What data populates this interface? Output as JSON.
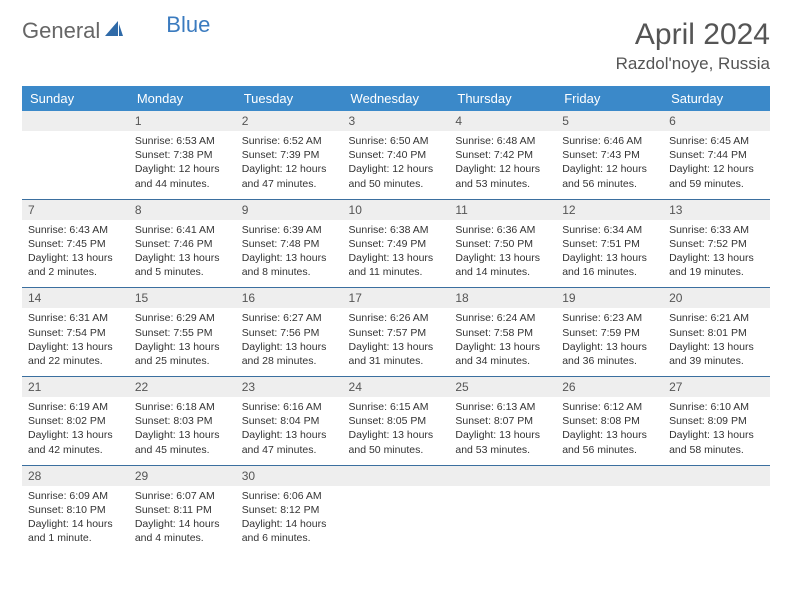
{
  "logo": {
    "text1": "General",
    "text2": "Blue"
  },
  "title": "April 2024",
  "location": "Razdol'noye, Russia",
  "colors": {
    "header_bg": "#3b89c9",
    "header_text": "#ffffff",
    "daynum_bg": "#eeeeee",
    "rule": "#3b6f9f",
    "logo_gray": "#666666",
    "logo_blue": "#3b7bbf"
  },
  "weekdays": [
    "Sunday",
    "Monday",
    "Tuesday",
    "Wednesday",
    "Thursday",
    "Friday",
    "Saturday"
  ],
  "weeks": [
    [
      null,
      {
        "n": "1",
        "sr": "Sunrise: 6:53 AM",
        "ss": "Sunset: 7:38 PM",
        "dl": "Daylight: 12 hours and 44 minutes."
      },
      {
        "n": "2",
        "sr": "Sunrise: 6:52 AM",
        "ss": "Sunset: 7:39 PM",
        "dl": "Daylight: 12 hours and 47 minutes."
      },
      {
        "n": "3",
        "sr": "Sunrise: 6:50 AM",
        "ss": "Sunset: 7:40 PM",
        "dl": "Daylight: 12 hours and 50 minutes."
      },
      {
        "n": "4",
        "sr": "Sunrise: 6:48 AM",
        "ss": "Sunset: 7:42 PM",
        "dl": "Daylight: 12 hours and 53 minutes."
      },
      {
        "n": "5",
        "sr": "Sunrise: 6:46 AM",
        "ss": "Sunset: 7:43 PM",
        "dl": "Daylight: 12 hours and 56 minutes."
      },
      {
        "n": "6",
        "sr": "Sunrise: 6:45 AM",
        "ss": "Sunset: 7:44 PM",
        "dl": "Daylight: 12 hours and 59 minutes."
      }
    ],
    [
      {
        "n": "7",
        "sr": "Sunrise: 6:43 AM",
        "ss": "Sunset: 7:45 PM",
        "dl": "Daylight: 13 hours and 2 minutes."
      },
      {
        "n": "8",
        "sr": "Sunrise: 6:41 AM",
        "ss": "Sunset: 7:46 PM",
        "dl": "Daylight: 13 hours and 5 minutes."
      },
      {
        "n": "9",
        "sr": "Sunrise: 6:39 AM",
        "ss": "Sunset: 7:48 PM",
        "dl": "Daylight: 13 hours and 8 minutes."
      },
      {
        "n": "10",
        "sr": "Sunrise: 6:38 AM",
        "ss": "Sunset: 7:49 PM",
        "dl": "Daylight: 13 hours and 11 minutes."
      },
      {
        "n": "11",
        "sr": "Sunrise: 6:36 AM",
        "ss": "Sunset: 7:50 PM",
        "dl": "Daylight: 13 hours and 14 minutes."
      },
      {
        "n": "12",
        "sr": "Sunrise: 6:34 AM",
        "ss": "Sunset: 7:51 PM",
        "dl": "Daylight: 13 hours and 16 minutes."
      },
      {
        "n": "13",
        "sr": "Sunrise: 6:33 AM",
        "ss": "Sunset: 7:52 PM",
        "dl": "Daylight: 13 hours and 19 minutes."
      }
    ],
    [
      {
        "n": "14",
        "sr": "Sunrise: 6:31 AM",
        "ss": "Sunset: 7:54 PM",
        "dl": "Daylight: 13 hours and 22 minutes."
      },
      {
        "n": "15",
        "sr": "Sunrise: 6:29 AM",
        "ss": "Sunset: 7:55 PM",
        "dl": "Daylight: 13 hours and 25 minutes."
      },
      {
        "n": "16",
        "sr": "Sunrise: 6:27 AM",
        "ss": "Sunset: 7:56 PM",
        "dl": "Daylight: 13 hours and 28 minutes."
      },
      {
        "n": "17",
        "sr": "Sunrise: 6:26 AM",
        "ss": "Sunset: 7:57 PM",
        "dl": "Daylight: 13 hours and 31 minutes."
      },
      {
        "n": "18",
        "sr": "Sunrise: 6:24 AM",
        "ss": "Sunset: 7:58 PM",
        "dl": "Daylight: 13 hours and 34 minutes."
      },
      {
        "n": "19",
        "sr": "Sunrise: 6:23 AM",
        "ss": "Sunset: 7:59 PM",
        "dl": "Daylight: 13 hours and 36 minutes."
      },
      {
        "n": "20",
        "sr": "Sunrise: 6:21 AM",
        "ss": "Sunset: 8:01 PM",
        "dl": "Daylight: 13 hours and 39 minutes."
      }
    ],
    [
      {
        "n": "21",
        "sr": "Sunrise: 6:19 AM",
        "ss": "Sunset: 8:02 PM",
        "dl": "Daylight: 13 hours and 42 minutes."
      },
      {
        "n": "22",
        "sr": "Sunrise: 6:18 AM",
        "ss": "Sunset: 8:03 PM",
        "dl": "Daylight: 13 hours and 45 minutes."
      },
      {
        "n": "23",
        "sr": "Sunrise: 6:16 AM",
        "ss": "Sunset: 8:04 PM",
        "dl": "Daylight: 13 hours and 47 minutes."
      },
      {
        "n": "24",
        "sr": "Sunrise: 6:15 AM",
        "ss": "Sunset: 8:05 PM",
        "dl": "Daylight: 13 hours and 50 minutes."
      },
      {
        "n": "25",
        "sr": "Sunrise: 6:13 AM",
        "ss": "Sunset: 8:07 PM",
        "dl": "Daylight: 13 hours and 53 minutes."
      },
      {
        "n": "26",
        "sr": "Sunrise: 6:12 AM",
        "ss": "Sunset: 8:08 PM",
        "dl": "Daylight: 13 hours and 56 minutes."
      },
      {
        "n": "27",
        "sr": "Sunrise: 6:10 AM",
        "ss": "Sunset: 8:09 PM",
        "dl": "Daylight: 13 hours and 58 minutes."
      }
    ],
    [
      {
        "n": "28",
        "sr": "Sunrise: 6:09 AM",
        "ss": "Sunset: 8:10 PM",
        "dl": "Daylight: 14 hours and 1 minute."
      },
      {
        "n": "29",
        "sr": "Sunrise: 6:07 AM",
        "ss": "Sunset: 8:11 PM",
        "dl": "Daylight: 14 hours and 4 minutes."
      },
      {
        "n": "30",
        "sr": "Sunrise: 6:06 AM",
        "ss": "Sunset: 8:12 PM",
        "dl": "Daylight: 14 hours and 6 minutes."
      },
      null,
      null,
      null,
      null
    ]
  ]
}
